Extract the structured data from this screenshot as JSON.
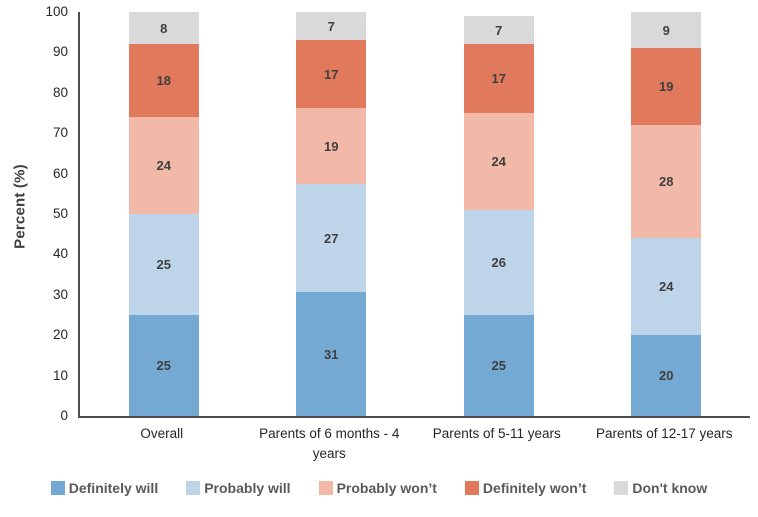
{
  "chart_data": {
    "type": "bar",
    "stacked": true,
    "title": "",
    "xlabel": "",
    "ylabel": "Percent (%)",
    "ylim": [
      0,
      100
    ],
    "yticks": [
      0,
      10,
      20,
      30,
      40,
      50,
      60,
      70,
      80,
      90,
      100
    ],
    "grid": false,
    "legend_position": "bottom",
    "categories": [
      "Overall",
      "Parents of 6 months - 4 years",
      "Parents of 5-11 years",
      "Parents of 12-17 years"
    ],
    "series": [
      {
        "name": "Definitely will",
        "color": "#74A9D3",
        "values": [
          25,
          31,
          25,
          20
        ]
      },
      {
        "name": "Probably will",
        "color": "#BDD4E9",
        "values": [
          25,
          27,
          26,
          24
        ]
      },
      {
        "name": "Probably won’t",
        "color": "#F2B8A8",
        "values": [
          24,
          19,
          24,
          28
        ]
      },
      {
        "name": "Definitely won’t",
        "color": "#E1795C",
        "values": [
          18,
          17,
          17,
          19
        ]
      },
      {
        "name": "Don't know",
        "color": "#D9D9D9",
        "values": [
          8,
          7,
          7,
          9
        ]
      }
    ],
    "colors": {
      "axis_line": "#4d4d4d",
      "tick_text": "#262626",
      "value_text": "#3f3f3f",
      "legend_text": "#595959",
      "axis_title_text": "#404040"
    }
  }
}
